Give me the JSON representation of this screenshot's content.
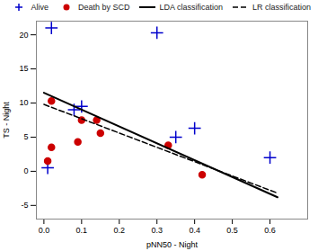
{
  "chart_data": {
    "type": "scatter",
    "xlabel": "pNN50 - Night",
    "ylabel": "TS - Night",
    "xlim": [
      -0.02,
      0.7
    ],
    "ylim": [
      -7,
      22
    ],
    "xticks": [
      {
        "value": 0.0,
        "label": "0.0"
      },
      0.1,
      0.2,
      0.3,
      0.4,
      0.5,
      0.6
    ],
    "yticks": [
      -5,
      0,
      5,
      10,
      15,
      20
    ],
    "grid": false,
    "legend": "upper right",
    "series": [
      {
        "name": "Alive",
        "type": "scatter",
        "marker": "plus",
        "color": "#0000cc",
        "x": [
          0.01,
          0.02,
          0.08,
          0.1,
          0.3,
          0.35,
          0.4,
          0.6
        ],
        "values": [
          0.5,
          21.0,
          9.0,
          9.5,
          20.3,
          5.0,
          6.3,
          2.0
        ]
      },
      {
        "name": "Death by SCD",
        "type": "scatter",
        "marker": "circle",
        "color": "#cc0000",
        "x": [
          0.01,
          0.02,
          0.02,
          0.09,
          0.1,
          0.14,
          0.15,
          0.33,
          0.42
        ],
        "values": [
          1.5,
          3.5,
          10.3,
          4.3,
          7.5,
          7.5,
          5.6,
          3.8,
          -0.5
        ]
      },
      {
        "name": "LDA classification",
        "type": "line",
        "line_style": "solid",
        "color": "#000000",
        "x": [
          0.0,
          0.62
        ],
        "values": [
          11.5,
          -3.8
        ]
      },
      {
        "name": "LR classification",
        "type": "line",
        "line_style": "dashed",
        "color": "#000000",
        "x": [
          0.0,
          0.62
        ],
        "values": [
          9.8,
          -3.2
        ]
      }
    ]
  }
}
